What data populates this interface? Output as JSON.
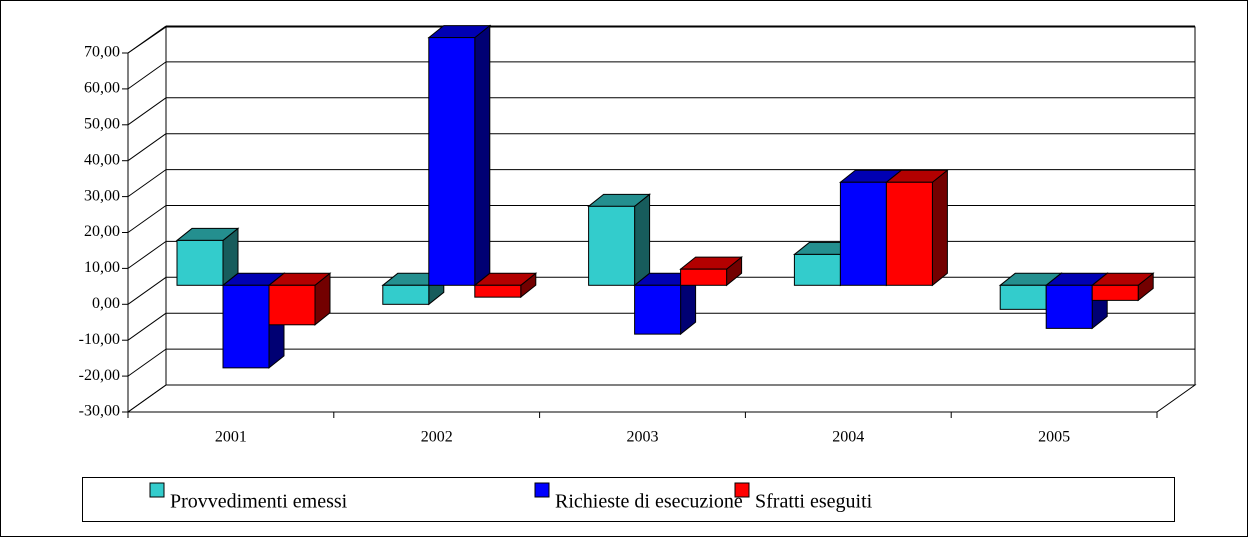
{
  "chart_data": {
    "type": "bar3d",
    "categories": [
      "2001",
      "2002",
      "2003",
      "2004",
      "2005"
    ],
    "series": [
      {
        "name": "Provvedimenti emessi",
        "color": "#33cccc",
        "values": [
          12.5,
          -5.3,
          22,
          8.6,
          -6.7
        ]
      },
      {
        "name": "Richieste di esecuzione",
        "color": "#0000ff",
        "values": [
          -23,
          69,
          -13.6,
          28.7,
          -12
        ]
      },
      {
        "name": "Sfratti eseguiti",
        "color": "#ff0000",
        "values": [
          -11,
          -3.3,
          4.5,
          28.7,
          -4.2
        ]
      }
    ],
    "ylim": [
      -30,
      70
    ],
    "yticks": [
      {
        "value": -30,
        "label": "-30,00"
      },
      {
        "value": -20,
        "label": "-20,00"
      },
      {
        "value": -10,
        "label": "-10,00"
      },
      {
        "value": 0,
        "label": "0,00"
      },
      {
        "value": 10,
        "label": "10,00"
      },
      {
        "value": 20,
        "label": "20,00"
      },
      {
        "value": 30,
        "label": "30,00"
      },
      {
        "value": 40,
        "label": "40,00"
      },
      {
        "value": 50,
        "label": "50,00"
      },
      {
        "value": 60,
        "label": "60,00"
      },
      {
        "value": 70,
        "label": "70,00"
      }
    ],
    "grid": true,
    "legend": "bottom"
  }
}
